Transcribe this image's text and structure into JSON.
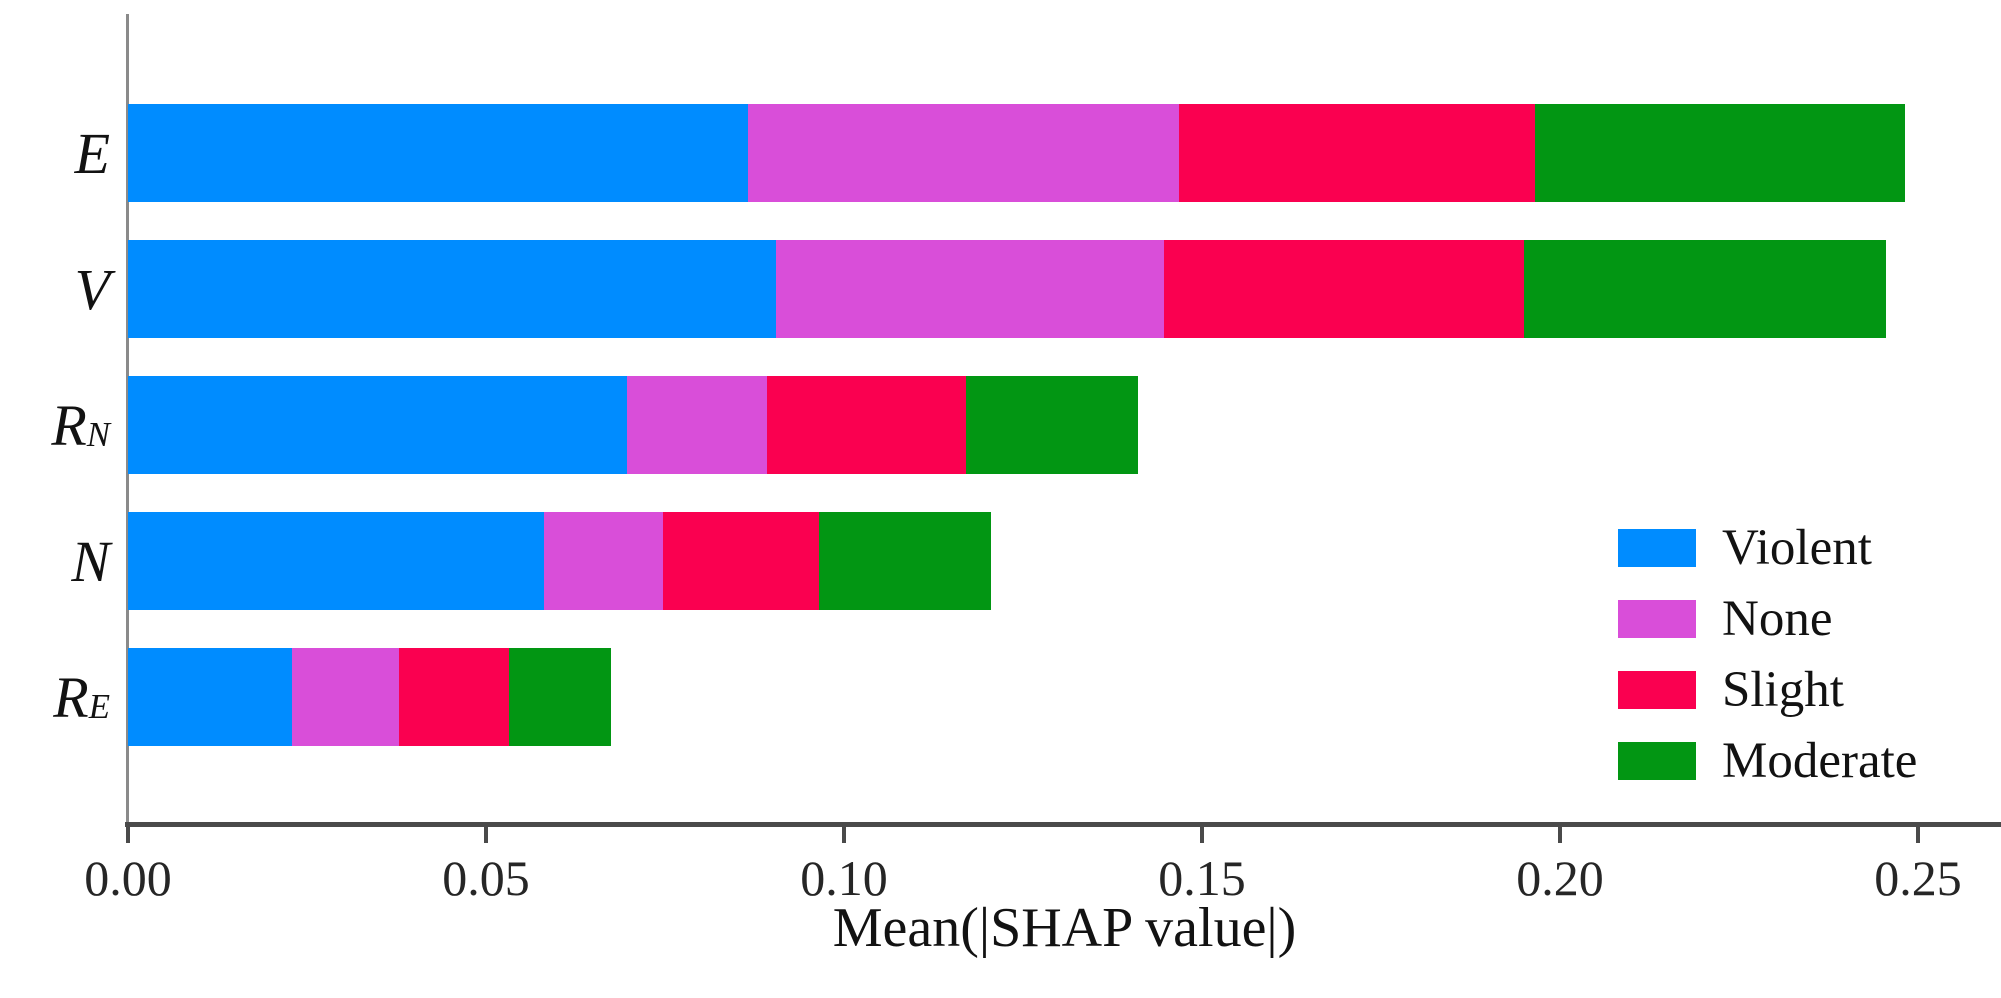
{
  "figure": {
    "background": "#ffffff",
    "axis_color": "#4a4a4a",
    "spine_color": "#8a8a8a",
    "text_color": "#121212"
  },
  "chart_data": {
    "type": "bar",
    "orientation": "horizontal",
    "stacked": true,
    "title": "",
    "xlabel": "Mean(|SHAP value|)",
    "ylabel": "",
    "xlim": [
      0,
      0.2616
    ],
    "grid": false,
    "legend_position": "center-right",
    "categories": [
      {
        "main": "E",
        "sub": ""
      },
      {
        "main": "V",
        "sub": ""
      },
      {
        "main": "R",
        "sub": "N"
      },
      {
        "main": "N",
        "sub": ""
      },
      {
        "main": "R",
        "sub": "E"
      }
    ],
    "series": [
      {
        "name": "Violent",
        "color": "#008CFF",
        "values": [
          0.0866,
          0.0905,
          0.0697,
          0.0581,
          0.0229
        ]
      },
      {
        "name": "None",
        "color": "#D94ED9",
        "values": [
          0.0602,
          0.0542,
          0.0196,
          0.0166,
          0.015
        ]
      },
      {
        "name": "Slight",
        "color": "#FA0050",
        "values": [
          0.0497,
          0.0503,
          0.0277,
          0.0218,
          0.0153
        ]
      },
      {
        "name": "Moderate",
        "color": "#029613",
        "values": [
          0.0517,
          0.0505,
          0.024,
          0.024,
          0.0143
        ]
      }
    ],
    "totals": [
      0.2482,
      0.2455,
      0.141,
      0.1205,
      0.0675
    ],
    "xtick_labels": [
      "0.00",
      "0.05",
      "0.10",
      "0.15",
      "0.20",
      "0.25"
    ],
    "xtick_values": [
      0,
      0.05,
      0.1,
      0.15,
      0.2,
      0.25
    ]
  }
}
